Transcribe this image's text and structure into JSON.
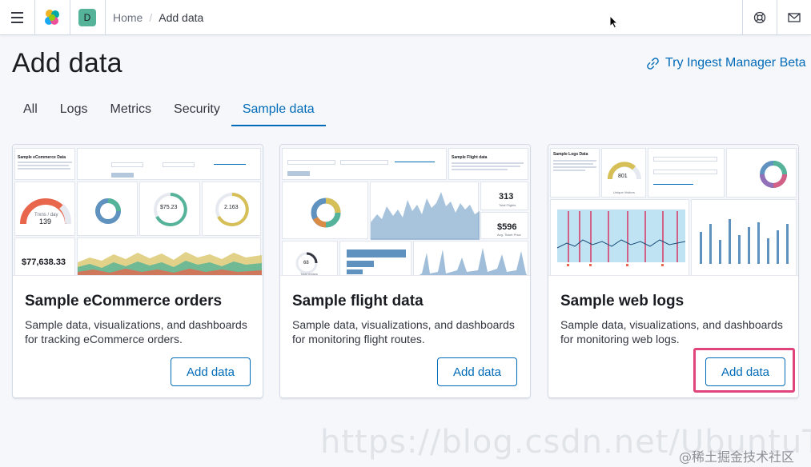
{
  "header": {
    "space_initial": "D",
    "breadcrumbs": {
      "home": "Home",
      "separator": "/",
      "current": "Add data"
    }
  },
  "page": {
    "title": "Add data",
    "ingest_link": "Try Ingest Manager Beta"
  },
  "tabs": [
    {
      "label": "All",
      "selected": false
    },
    {
      "label": "Logs",
      "selected": false
    },
    {
      "label": "Metrics",
      "selected": false
    },
    {
      "label": "Security",
      "selected": false
    },
    {
      "label": "Sample data",
      "selected": true
    }
  ],
  "cards": [
    {
      "title": "Sample eCommerce orders",
      "description": "Sample data, visualizations, and dashboards for tracking eCommerce orders.",
      "button": "Add data",
      "preview": {
        "metric_total": "$77,638.33",
        "gauge_value": "139",
        "gauge_label": "Trxns / day",
        "avg_spend": "$75.23",
        "avg_items": "2.163",
        "heading": "Sample eCommerce Data"
      }
    },
    {
      "title": "Sample flight data",
      "description": "Sample data, visualizations, and dashboards for monitoring flight routes.",
      "button": "Add data",
      "preview": {
        "total_flights": "313",
        "total_flights_label": "Total Flights",
        "avg_price": "$596",
        "avg_price_label": "Avg. Ticket Price",
        "delays": "68",
        "delays_label": "Total Delays",
        "heading": "Sample Flight data"
      }
    },
    {
      "title": "Sample web logs",
      "description": "Sample data, visualizations, and dashboards for monitoring web logs.",
      "button": "Add data",
      "preview": {
        "unique_visitors": "801",
        "unique_visitors_label": "Unique Visitors",
        "heading": "Sample Logs Data"
      }
    }
  ],
  "watermark": "https://blog.csdn.net/UbuntuTouch",
  "watermark_cn": "@稀土掘金技术社区",
  "colors": {
    "accent": "#006bb8",
    "highlight": "#e0447a",
    "space": "#54b399"
  }
}
